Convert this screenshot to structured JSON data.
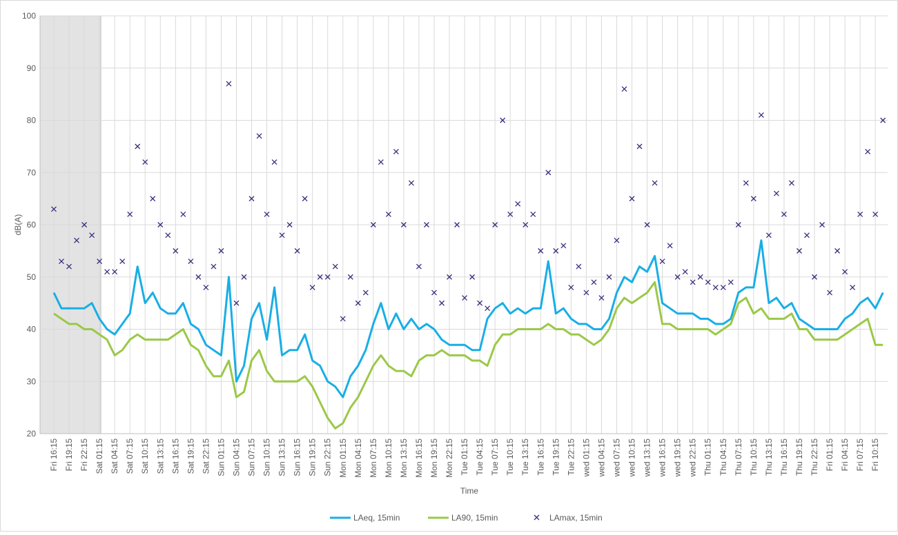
{
  "chart_data": {
    "type": "line",
    "y_label": "dB(A)",
    "x_label": "Time",
    "ylim": [
      20,
      100
    ],
    "yticks": [
      20,
      30,
      40,
      50,
      60,
      70,
      80,
      90,
      100
    ],
    "grid": true,
    "legend": "bottom",
    "categories": [
      "Fri 16:15",
      null,
      "Fri 19:15",
      null,
      "Fri 22:15",
      null,
      "Sat 01:15",
      null,
      "Sat 04:15",
      null,
      "Sat 07:15",
      null,
      "Sat 10:15",
      null,
      "Sat 13:15",
      null,
      "Sat 16:15",
      null,
      "Sat 19:15",
      null,
      "Sat 22:15",
      null,
      "Sun 01:15",
      null,
      "Sun 04:15",
      null,
      "Sun 07:15",
      null,
      "Sun 10:15",
      null,
      "Sun 13:15",
      null,
      "Sun 16:15",
      null,
      "Sun 19:15",
      null,
      "Sun 22:15",
      null,
      "Mon 01:15",
      null,
      "Mon 04:15",
      null,
      "Mon 07:15",
      null,
      "Mon 10:15",
      null,
      "Mon 13:15",
      null,
      "Mon 16:15",
      null,
      "Mon 19:15",
      null,
      "Mon 22:15",
      null,
      "Tue 01:15",
      null,
      "Tue 04:15",
      null,
      "Tue 07:15",
      null,
      "Tue 10:15",
      null,
      "Tue 13:15",
      null,
      "Tue 16:15",
      null,
      "Tue 19:15",
      null,
      "Tue 22:15",
      null,
      "wed 01:15",
      null,
      "wed 04:15",
      null,
      "wed 07:15",
      null,
      "wed 10:15",
      null,
      "wed 13:15",
      null,
      "wed 16:15",
      null,
      "wed 19:15",
      null,
      "wed 22:15",
      null,
      "Thu 01:15",
      null,
      "Thu 04:15",
      null,
      "Thu 07:15",
      null,
      "Thu 10:15",
      null,
      "Thu 13:15",
      null,
      "Thu 16:15",
      null,
      "Thu 19:15",
      null,
      "Thu 22:15",
      null,
      "Fri 01:15",
      null,
      "Fri 04:15",
      null,
      "Fri 07:15",
      null,
      "Fri 10:15",
      null
    ],
    "series": [
      {
        "name": "LAeq, 15min",
        "color": "#18aee6",
        "mode": "line",
        "values": [
          47,
          44,
          44,
          44,
          44,
          45,
          42,
          40,
          39,
          41,
          43,
          52,
          45,
          47,
          44,
          43,
          43,
          45,
          41,
          40,
          37,
          36,
          35,
          50,
          30,
          33,
          42,
          45,
          38,
          48,
          35,
          36,
          36,
          39,
          34,
          33,
          30,
          29,
          27,
          31,
          33,
          36,
          41,
          45,
          40,
          43,
          40,
          42,
          40,
          41,
          40,
          38,
          37,
          37,
          37,
          36,
          36,
          42,
          44,
          45,
          43,
          44,
          43,
          44,
          44,
          53,
          43,
          44,
          42,
          41,
          41,
          40,
          40,
          42,
          47,
          50,
          49,
          52,
          51,
          54,
          45,
          44,
          43,
          43,
          43,
          42,
          42,
          41,
          41,
          42,
          47,
          48,
          48,
          57,
          45,
          46,
          44,
          45,
          42,
          41,
          40,
          40,
          40,
          40,
          42,
          43,
          45,
          46,
          44,
          47
        ]
      },
      {
        "name": "LA90, 15min",
        "color": "#9bc847",
        "mode": "line",
        "values": [
          43,
          42,
          41,
          41,
          40,
          40,
          39,
          38,
          35,
          36,
          38,
          39,
          38,
          38,
          38,
          38,
          39,
          40,
          37,
          36,
          33,
          31,
          31,
          34,
          27,
          28,
          34,
          36,
          32,
          30,
          30,
          30,
          30,
          31,
          29,
          26,
          23,
          21,
          22,
          25,
          27,
          30,
          33,
          35,
          33,
          32,
          32,
          31,
          34,
          35,
          35,
          36,
          35,
          35,
          35,
          34,
          34,
          33,
          37,
          39,
          39,
          40,
          40,
          40,
          40,
          41,
          40,
          40,
          39,
          39,
          38,
          37,
          38,
          40,
          44,
          46,
          45,
          46,
          47,
          49,
          41,
          41,
          40,
          40,
          40,
          40,
          40,
          39,
          40,
          41,
          45,
          46,
          43,
          44,
          42,
          42,
          42,
          43,
          40,
          40,
          38,
          38,
          38,
          38,
          39,
          40,
          41,
          42,
          37,
          37
        ]
      },
      {
        "name": "LAmax, 15min",
        "color": "#3b2c7c",
        "mode": "markers",
        "values": [
          63,
          53,
          52,
          57,
          60,
          58,
          53,
          51,
          51,
          53,
          62,
          75,
          72,
          65,
          60,
          58,
          55,
          62,
          53,
          50,
          48,
          52,
          55,
          87,
          45,
          50,
          65,
          77,
          62,
          72,
          58,
          60,
          55,
          65,
          48,
          50,
          50,
          52,
          42,
          50,
          45,
          47,
          60,
          72,
          62,
          74,
          60,
          68,
          52,
          60,
          47,
          45,
          50,
          60,
          46,
          50,
          45,
          44,
          60,
          80,
          62,
          64,
          60,
          62,
          55,
          70,
          55,
          56,
          48,
          52,
          47,
          49,
          46,
          50,
          57,
          86,
          65,
          75,
          60,
          68,
          53,
          56,
          50,
          51,
          49,
          50,
          49,
          48,
          48,
          49,
          60,
          68,
          65,
          81,
          58,
          66,
          62,
          68,
          55,
          58,
          50,
          60,
          47,
          55,
          51,
          48,
          62,
          74,
          62,
          80
        ]
      }
    ]
  }
}
